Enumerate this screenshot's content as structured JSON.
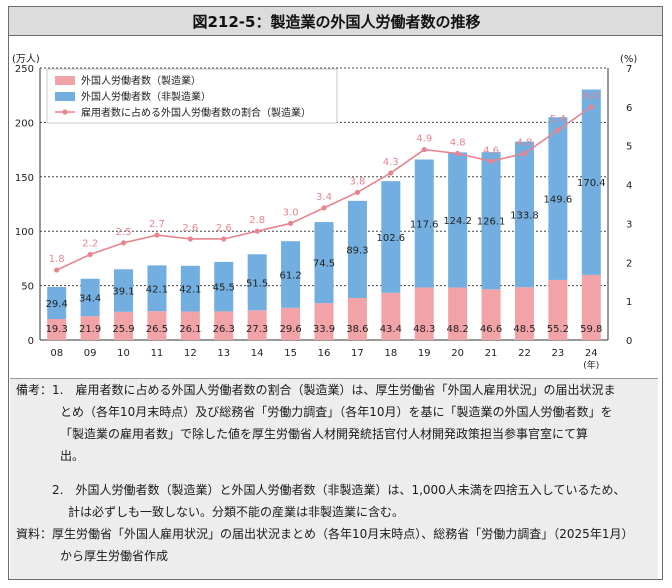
{
  "title": "図212-5：製造業の外国人労働者数の推移",
  "chart_data": {
    "type": "bar",
    "stacked": true,
    "categories": [
      "08",
      "09",
      "10",
      "11",
      "12",
      "13",
      "14",
      "15",
      "16",
      "17",
      "18",
      "19",
      "20",
      "21",
      "22",
      "23",
      "24"
    ],
    "series": [
      {
        "name": "外国人労働者数（製造業）",
        "type": "bar",
        "axis": "left",
        "color": "#f2a3a7",
        "values": [
          19.3,
          21.9,
          25.9,
          26.5,
          26.1,
          26.3,
          27.3,
          29.6,
          33.9,
          38.6,
          43.4,
          48.3,
          48.2,
          46.6,
          48.5,
          55.2,
          59.8
        ]
      },
      {
        "name": "外国人労働者数（非製造業）",
        "type": "bar",
        "axis": "left",
        "color": "#72aedf",
        "values": [
          29.4,
          34.4,
          39.1,
          42.1,
          42.1,
          45.5,
          51.5,
          61.2,
          74.5,
          89.3,
          102.6,
          117.6,
          124.2,
          126.1,
          133.8,
          149.6,
          170.4
        ]
      },
      {
        "name": "雇用者数に占める外国人労働者数の割合（製造業）",
        "type": "line",
        "axis": "right",
        "color": "#e8848f",
        "values": [
          1.8,
          2.2,
          2.5,
          2.7,
          2.6,
          2.6,
          2.8,
          3.0,
          3.4,
          3.8,
          4.3,
          4.9,
          4.8,
          4.6,
          4.8,
          5.4,
          6.0
        ]
      }
    ],
    "y_left": {
      "unit": "(万人)",
      "ylim": [
        0,
        250
      ],
      "ticks": [
        "0",
        "50",
        "100",
        "150",
        "200",
        "250"
      ]
    },
    "y_right": {
      "unit": "(%)",
      "ylim": [
        0,
        7
      ],
      "ticks": [
        "0",
        "1",
        "2",
        "3",
        "4",
        "5",
        "6",
        "7"
      ]
    },
    "x_unit": "(年)",
    "grid": "dotted horizontal at left-axis ticks",
    "legend_position": "top-left"
  },
  "notes": [
    "備考：1.　雇用者数に占める外国人労働者数の割合（製造業）は、厚生労働省「外国人雇用状況」の届出状況ま",
    "とめ（各年10月末時点）及び総務省「労働力調査」（各年10月）を基に「製造業の外国人労働者数」を",
    "「製造業の雇用者数」で除した値を厚生労働省人材開発統括官付人材開発政策担当参事官室にて算",
    "出。",
    "2.　外国人労働者数（製造業）と外国人労働者数（非製造業）は、1,000人未満を四捨五入しているため、",
    "計は必ずしも一致しない。分類不能の産業は非製造業に含む。",
    "資料：厚生労働省「外国人雇用状況」の届出状況まとめ（各年10月末時点）、総務省「労働力調査」（2025年1月）",
    "から厚生労働省作成"
  ]
}
